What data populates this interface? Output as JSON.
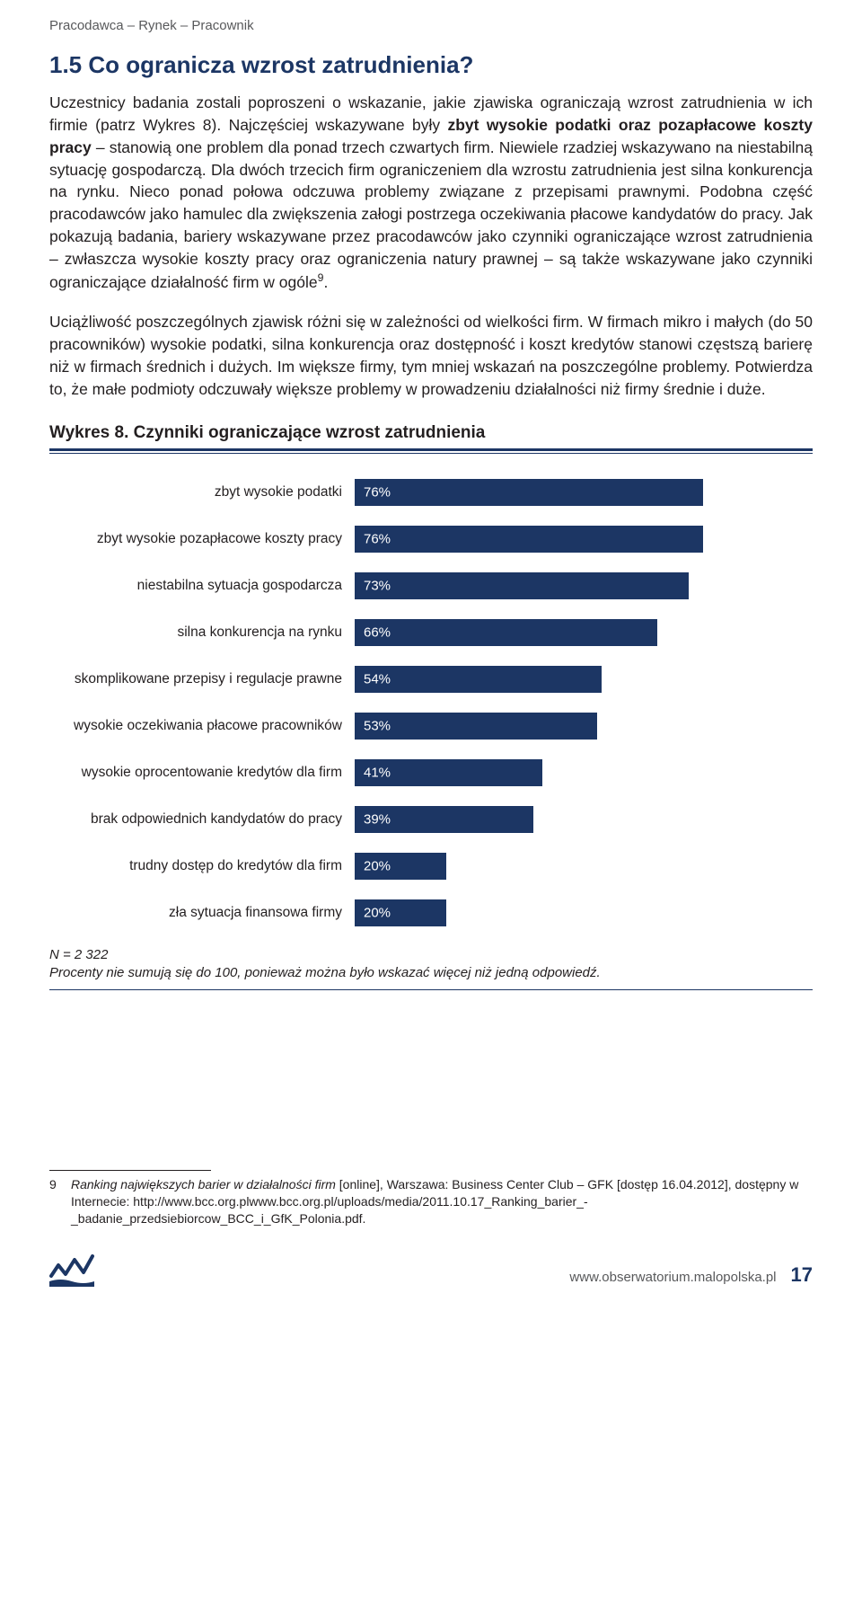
{
  "header": {
    "breadcrumb": "Pracodawca – Rynek – Pracownik"
  },
  "section": {
    "heading": "1.5 Co ogranicza wzrost zatrudnienia?",
    "para1_a": "Uczestnicy badania zostali poproszeni o wskazanie, jakie zjawiska ograniczają wzrost zatrudnienia w ich firmie (patrz Wykres 8). Najczęściej wskazywane były ",
    "para1_bold": "zbyt wysokie podatki oraz pozapłacowe koszty pracy",
    "para1_b": " – stanowią one problem dla ponad trzech czwartych firm. Niewiele rzadziej wskazywano na niestabilną sytuację gospodarczą. Dla dwóch trzecich firm ograniczeniem dla wzrostu zatrudnienia jest silna konkurencja na rynku. Nieco ponad połowa odczuwa problemy związane z przepisami prawnymi. Podobna część pracodawców jako hamulec dla zwiększenia załogi postrzega oczekiwania płacowe kandydatów do pracy. Jak pokazują badania, bariery wskazywane przez pracodawców jako czynniki ograniczające wzrost zatrudnienia – zwłaszcza wysokie koszty pracy oraz ograniczenia natury prawnej – są także wskazywane jako czynniki ograniczające działalność firm w ogóle",
    "para1_sup": "9",
    "para1_c": ".",
    "para2": "Uciążliwość poszczególnych zjawisk różni się w zależności od wielkości firm. W firmach mikro i małych (do 50 pracowników) wysokie podatki, silna konkurencja oraz dostępność i koszt kredytów stanowi częstszą barierę niż w firmach średnich i dużych. Im większe firmy, tym mniej wskazań na poszczególne problemy. Potwierdza to, że małe podmioty odczuwały większe problemy w prowadzeniu działalności niż firmy średnie i duże."
  },
  "chart": {
    "title": "Wykres 8. Czynniki ograniczające wzrost zatrudnienia",
    "type": "bar",
    "bar_color": "#1c3664",
    "value_text_color": "#ffffff",
    "max_value": 100,
    "label_fontsize": 15.5,
    "value_fontsize": 15,
    "bars": [
      {
        "label": "zbyt wysokie podatki",
        "value": 76,
        "display": "76%"
      },
      {
        "label": "zbyt wysokie pozapłacowe koszty pracy",
        "value": 76,
        "display": "76%"
      },
      {
        "label": "niestabilna sytuacja gospodarcza",
        "value": 73,
        "display": "73%"
      },
      {
        "label": "silna konkurencja na rynku",
        "value": 66,
        "display": "66%"
      },
      {
        "label": "skomplikowane przepisy i regulacje prawne",
        "value": 54,
        "display": "54%"
      },
      {
        "label": "wysokie oczekiwania płacowe pracowników",
        "value": 53,
        "display": "53%"
      },
      {
        "label": "wysokie oprocentowanie kredytów dla firm",
        "value": 41,
        "display": "41%"
      },
      {
        "label": "brak odpowiednich kandydatów do pracy",
        "value": 39,
        "display": "39%"
      },
      {
        "label": "trudny dostęp do kredytów dla firm",
        "value": 20,
        "display": "20%"
      },
      {
        "label": "zła sytuacja finansowa firmy",
        "value": 20,
        "display": "20%"
      }
    ],
    "note_line1": "N = 2 322",
    "note_line2": "Procenty nie sumują się do 100, ponieważ można było wskazać więcej niż jedną odpowiedź."
  },
  "footnote": {
    "num": "9",
    "text_a": "Ranking największych barier w działalności firm",
    "text_b": " [online], Warszawa: Business Center Club – GFK [dostęp 16.04.2012], dostępny w Internecie: http://www.bcc.org.plwww.bcc.org.pl/uploads/media/2011.10.17_Ranking_barier_-_badanie_przedsiebiorcow_BCC_i_GfK_Polonia.pdf."
  },
  "footer": {
    "url": "www.obserwatorium.malopolska.pl",
    "page": "17",
    "logo_color": "#1c3664"
  }
}
